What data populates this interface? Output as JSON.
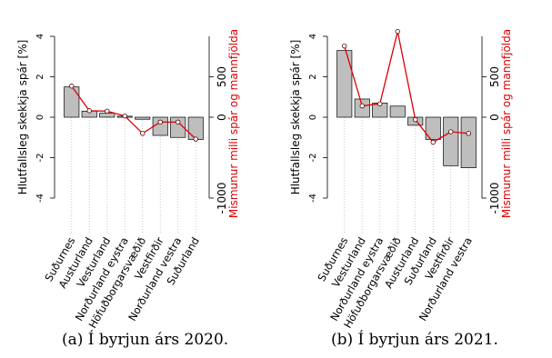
{
  "chart_data": [
    {
      "type": "bar",
      "caption": "(a) Í byrjun árs 2020.",
      "ylabel": "Hlutfallsleg skekkja spár [%]",
      "y2label": "Mismunur milli spár og mannfjölda",
      "ylim": [
        -4,
        4
      ],
      "y2lim": [
        -1000,
        1000
      ],
      "yticks": [
        -4,
        -2,
        0,
        2,
        4
      ],
      "y2ticks": [
        -1000,
        0,
        500
      ],
      "categories": [
        "Suðurnes",
        "Austurland",
        "Vesturland",
        "Norðurland eystra",
        "Höfuðborgarsvæðið",
        "Vestfirðir",
        "Norðurland vestra",
        "Suðurland"
      ],
      "series": [
        {
          "values": [
            1.5,
            0.3,
            0.2,
            0.05,
            -0.1,
            -0.9,
            -1.0,
            -1.1
          ]
        },
        {
          "axis": "right",
          "type": "line",
          "values": [
            385,
            80,
            75,
            15,
            -200,
            -60,
            -60,
            -270
          ]
        }
      ],
      "colors": {
        "bar": "#bebebe",
        "line": "#dd0000",
        "axis2": "#dd0000"
      }
    },
    {
      "type": "bar",
      "caption": "(b) Í byrjun árs 2021.",
      "ylabel": "Hlutfallsleg skekkja spár [%]",
      "y2label": "Mismunur milli spár og mannfjölda",
      "ylim": [
        -4,
        4
      ],
      "y2lim": [
        -1000,
        1000
      ],
      "yticks": [
        -4,
        -2,
        0,
        2,
        4
      ],
      "y2ticks": [
        -1000,
        0,
        500
      ],
      "categories": [
        "Suðurnes",
        "Vesturland",
        "Norðurland eystra",
        "Höfuðborgarsvæðið",
        "Austurland",
        "Suðurland",
        "Vestfirðir",
        "Norðurland vestra"
      ],
      "series": [
        {
          "values": [
            3.3,
            0.9,
            0.7,
            0.55,
            -0.4,
            -1.1,
            -2.4,
            -2.5
          ]
        },
        {
          "axis": "right",
          "type": "line",
          "values": [
            880,
            140,
            165,
            1060,
            -30,
            -310,
            -180,
            -200
          ]
        }
      ],
      "colors": {
        "bar": "#bebebe",
        "line": "#dd0000",
        "axis2": "#dd0000"
      }
    }
  ]
}
